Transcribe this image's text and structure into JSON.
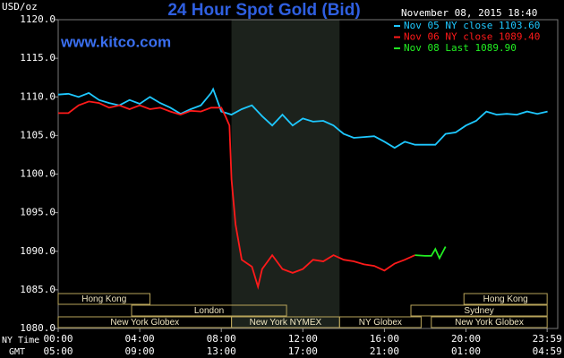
{
  "chart_data": {
    "type": "line",
    "title": "24 Hour Spot Gold (Bid)",
    "website": "www.kitco.com",
    "y_unit": "USD/oz",
    "timestamp": "November 08, 2015 18:40",
    "xlim": [
      0,
      24.5
    ],
    "ylim": [
      1080,
      1120
    ],
    "yticks": [
      {
        "value": 1080,
        "label": "1080.0"
      },
      {
        "value": 1085,
        "label": "1085.0"
      },
      {
        "value": 1090,
        "label": "1090.0"
      },
      {
        "value": 1095,
        "label": "1095.0"
      },
      {
        "value": 1100,
        "label": "1100.0"
      },
      {
        "value": 1105,
        "label": "1105.0"
      },
      {
        "value": 1110,
        "label": "1110.0"
      },
      {
        "value": 1115,
        "label": "1115.0"
      },
      {
        "value": 1120,
        "label": "1120.0"
      }
    ],
    "xticks": [
      {
        "value": 0,
        "label": "00:00"
      },
      {
        "value": 4,
        "label": "04:00"
      },
      {
        "value": 8,
        "label": "08:00"
      },
      {
        "value": 12,
        "label": "12:00"
      },
      {
        "value": 16,
        "label": "16:00"
      },
      {
        "value": 20,
        "label": "20:00"
      },
      {
        "value": 23.98,
        "label": "23:59"
      }
    ],
    "xtick_labels_gmt": [
      "05:00",
      "09:00",
      "13:00",
      "17:00",
      "21:00",
      "01:00",
      "04:59"
    ],
    "x_row_labels": [
      "NY Time",
      "GMT"
    ],
    "sessions": [
      {
        "label": "Hong Kong",
        "start": 0,
        "end": 4.5,
        "row": 0
      },
      {
        "label": "London",
        "start": 3.6,
        "end": 11.2,
        "row": 1
      },
      {
        "label": "New York Globex",
        "start": 0,
        "end": 8.5,
        "row": 2
      },
      {
        "label": "New York NYMEX",
        "start": 8.5,
        "end": 13.8,
        "row": 2,
        "highlight": true
      },
      {
        "label": "NY Globex",
        "start": 13.8,
        "end": 17.8,
        "row": 2
      },
      {
        "label": "Sydney",
        "start": 17.3,
        "end": 23.98,
        "row": 1
      },
      {
        "label": "Hong Kong",
        "start": 19.9,
        "end": 23.98,
        "row": 0
      },
      {
        "label": "New York Globex",
        "start": 18.3,
        "end": 23.98,
        "row": 2
      }
    ],
    "series": [
      {
        "name": "Nov 05 NY close 1103.60",
        "color": "#1ec8ff",
        "x": [
          0,
          0.5,
          1,
          1.5,
          2,
          2.5,
          3,
          3.5,
          4,
          4.5,
          5,
          5.5,
          6,
          6.5,
          7,
          7.5,
          7.6,
          8,
          8.5,
          9,
          9.5,
          10,
          10.5,
          11,
          11.5,
          12,
          12.5,
          13,
          13.5,
          14,
          14.5,
          15,
          15.5,
          16,
          16.5,
          17,
          17.5,
          18,
          18.5,
          19,
          19.5,
          20,
          20.5,
          21,
          21.5,
          22,
          22.5,
          23,
          23.5,
          24
        ],
        "values": [
          1110.3,
          1110.4,
          1110.0,
          1110.5,
          1109.6,
          1109.2,
          1108.9,
          1109.6,
          1109.1,
          1110.0,
          1109.2,
          1108.6,
          1107.8,
          1108.4,
          1108.9,
          1110.5,
          1111.0,
          1108.1,
          1107.7,
          1108.4,
          1108.9,
          1107.5,
          1106.3,
          1107.7,
          1106.3,
          1107.2,
          1106.8,
          1106.9,
          1106.3,
          1105.2,
          1104.7,
          1104.8,
          1104.9,
          1104.2,
          1103.4,
          1104.2,
          1103.8,
          1103.8,
          1103.8,
          1105.2,
          1105.4,
          1106.3,
          1106.9,
          1108.1,
          1107.7,
          1107.8,
          1107.7,
          1108.1,
          1107.8,
          1108.1
        ]
      },
      {
        "name": "Nov 06 NY close 1089.40",
        "color": "#ff1a1a",
        "x": [
          0,
          0.5,
          1,
          1.5,
          2,
          2.5,
          3,
          3.5,
          4,
          4.5,
          5,
          5.5,
          6,
          6.5,
          7,
          7.5,
          8,
          8.2,
          8.4,
          8.5,
          8.7,
          9,
          9.5,
          9.8,
          10,
          10.5,
          11,
          11.5,
          12,
          12.5,
          13,
          13.5,
          14,
          14.5,
          15,
          15.5,
          16,
          16.5,
          17,
          17.5
        ],
        "values": [
          1107.9,
          1107.9,
          1108.9,
          1109.4,
          1109.2,
          1108.6,
          1108.9,
          1108.4,
          1108.9,
          1108.4,
          1108.6,
          1108.1,
          1107.7,
          1108.2,
          1108.1,
          1108.6,
          1108.6,
          1107.5,
          1106.3,
          1099.3,
          1093.5,
          1088.9,
          1088.0,
          1085.4,
          1087.7,
          1089.5,
          1087.7,
          1087.2,
          1087.7,
          1088.9,
          1088.7,
          1089.5,
          1088.9,
          1088.7,
          1088.3,
          1088.1,
          1087.5,
          1088.4,
          1088.9,
          1089.5
        ]
      },
      {
        "name": "Nov 08 Last 1089.90",
        "color": "#22ee22",
        "x": [
          17.5,
          18,
          18.3,
          18.5,
          18.7,
          19
        ],
        "values": [
          1089.5,
          1089.4,
          1089.4,
          1090.3,
          1089.1,
          1090.6
        ]
      }
    ]
  }
}
